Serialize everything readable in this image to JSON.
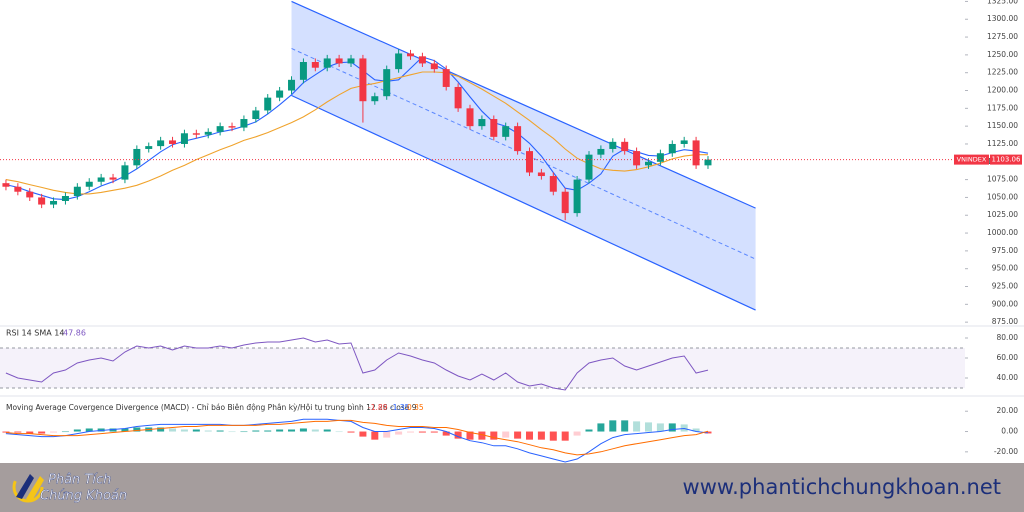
{
  "chart_data": [
    {
      "type": "candlestick",
      "symbol": "VNINDEX",
      "xlim": [
        -0.5,
        80.6
      ],
      "ylim": [
        871,
        1327
      ],
      "yticks": [
        {
          "value": 875,
          "label": "875.00"
        },
        {
          "value": 900,
          "label": "900.00"
        },
        {
          "value": 925,
          "label": "925.00"
        },
        {
          "value": 950,
          "label": "950.00"
        },
        {
          "value": 975,
          "label": "975.00"
        },
        {
          "value": 1000,
          "label": "1000.00"
        },
        {
          "value": 1025,
          "label": "1025.00"
        },
        {
          "value": 1050,
          "label": "1050.00"
        },
        {
          "value": 1075,
          "label": "1075.00"
        },
        {
          "value": 1100,
          "label": "1100.00"
        },
        {
          "value": 1125,
          "label": "1125.00"
        },
        {
          "value": 1150,
          "label": "1150.00"
        },
        {
          "value": 1175,
          "label": "1175.00"
        },
        {
          "value": 1200,
          "label": "1200.00"
        },
        {
          "value": 1225,
          "label": "1225.00"
        },
        {
          "value": 1250,
          "label": "1250.00"
        },
        {
          "value": 1275,
          "label": "1275.00"
        },
        {
          "value": 1300,
          "label": "1300.00"
        },
        {
          "value": 1325,
          "label": "1325.00"
        }
      ],
      "up_color": "#089981",
      "down_color": "#f23645",
      "open": [
        1070,
        1065,
        1058,
        1050,
        1040,
        1045,
        1052,
        1065,
        1072,
        1078,
        1075,
        1095,
        1118,
        1122,
        1130,
        1125,
        1140,
        1138,
        1142,
        1150,
        1148,
        1160,
        1172,
        1190,
        1200,
        1215,
        1240,
        1232,
        1245,
        1238,
        1245,
        1185,
        1192,
        1230,
        1252,
        1248,
        1238,
        1230,
        1205,
        1175,
        1150,
        1160,
        1135,
        1150,
        1115,
        1085,
        1080,
        1058,
        1028,
        1075,
        1110,
        1118,
        1128,
        1115,
        1095,
        1100,
        1112,
        1125,
        1130,
        1095
      ],
      "high": [
        1075,
        1070,
        1063,
        1055,
        1050,
        1057,
        1070,
        1077,
        1083,
        1083,
        1100,
        1123,
        1127,
        1135,
        1135,
        1145,
        1145,
        1147,
        1155,
        1155,
        1165,
        1177,
        1195,
        1205,
        1220,
        1245,
        1245,
        1250,
        1250,
        1250,
        1250,
        1197,
        1235,
        1258,
        1257,
        1253,
        1243,
        1235,
        1210,
        1180,
        1165,
        1165,
        1155,
        1155,
        1120,
        1090,
        1085,
        1063,
        1080,
        1115,
        1123,
        1133,
        1133,
        1120,
        1105,
        1117,
        1130,
        1135,
        1135,
        1108
      ],
      "low": [
        1060,
        1053,
        1045,
        1035,
        1035,
        1040,
        1047,
        1060,
        1067,
        1070,
        1070,
        1090,
        1113,
        1117,
        1120,
        1120,
        1133,
        1133,
        1137,
        1143,
        1143,
        1155,
        1167,
        1185,
        1195,
        1210,
        1227,
        1227,
        1233,
        1233,
        1155,
        1180,
        1187,
        1225,
        1243,
        1233,
        1225,
        1200,
        1170,
        1145,
        1145,
        1130,
        1130,
        1110,
        1080,
        1075,
        1053,
        1018,
        1023,
        1070,
        1105,
        1113,
        1110,
        1090,
        1090,
        1095,
        1107,
        1120,
        1090,
        1090
      ],
      "close": [
        1065,
        1058,
        1050,
        1040,
        1045,
        1052,
        1065,
        1072,
        1078,
        1075,
        1095,
        1118,
        1122,
        1130,
        1125,
        1140,
        1138,
        1142,
        1150,
        1148,
        1160,
        1172,
        1190,
        1200,
        1215,
        1240,
        1232,
        1245,
        1238,
        1245,
        1185,
        1192,
        1230,
        1252,
        1248,
        1238,
        1230,
        1205,
        1175,
        1150,
        1160,
        1135,
        1150,
        1115,
        1085,
        1080,
        1058,
        1028,
        1075,
        1110,
        1118,
        1128,
        1115,
        1095,
        1100,
        1112,
        1125,
        1130,
        1095,
        1103.06
      ],
      "series": [
        {
          "color": "#2962ff",
          "values": [
            1068,
            1064,
            1058,
            1053,
            1048,
            1047,
            1051,
            1058,
            1066,
            1072,
            1080,
            1090,
            1102,
            1114,
            1124,
            1129,
            1133,
            1137,
            1142,
            1145,
            1150,
            1156,
            1167,
            1180,
            1194,
            1211,
            1222,
            1233,
            1239,
            1240,
            1228,
            1215,
            1213,
            1215,
            1231,
            1247,
            1242,
            1230,
            1212,
            1191,
            1171,
            1155,
            1150,
            1140,
            1126,
            1108,
            1085,
            1063,
            1060,
            1070,
            1083,
            1108,
            1118,
            1114,
            1109,
            1108,
            1113,
            1117,
            1115,
            1112
          ]
        },
        {
          "color": "#f0a32c",
          "values": [
            1075,
            1072,
            1068,
            1064,
            1060,
            1057,
            1055,
            1055,
            1057,
            1060,
            1063,
            1067,
            1073,
            1080,
            1088,
            1095,
            1103,
            1110,
            1117,
            1123,
            1130,
            1135,
            1141,
            1148,
            1155,
            1163,
            1173,
            1184,
            1194,
            1203,
            1207,
            1210,
            1214,
            1218,
            1222,
            1226,
            1226,
            1225,
            1220,
            1211,
            1202,
            1192,
            1182,
            1170,
            1158,
            1145,
            1133,
            1118,
            1105,
            1097,
            1090,
            1088,
            1087,
            1089,
            1093,
            1098,
            1104,
            1108,
            1110,
            1110
          ]
        }
      ],
      "channel": {
        "x": [
          24,
          63
        ],
        "upper": [
          1325,
          1035
        ],
        "lower": [
          1193,
          892
        ],
        "color": "#2962ff"
      }
    },
    {
      "type": "line",
      "title": "RSI 14 SMA 14",
      "color": "#7e57c2",
      "ylim": [
        23,
        91
      ],
      "yticks": [
        {
          "value": 80,
          "label": "80.00"
        },
        {
          "value": 60,
          "label": "60.00"
        },
        {
          "value": 40,
          "label": "40.00"
        }
      ],
      "band": [
        30,
        70
      ],
      "values": [
        45,
        40,
        38,
        36,
        45,
        48,
        55,
        58,
        60,
        57,
        66,
        72,
        70,
        72,
        68,
        72,
        70,
        70,
        72,
        70,
        73,
        75,
        76,
        76,
        78,
        80,
        76,
        78,
        74,
        75,
        45,
        48,
        58,
        65,
        62,
        58,
        55,
        48,
        42,
        38,
        44,
        38,
        45,
        36,
        32,
        34,
        30,
        28,
        45,
        55,
        58,
        60,
        52,
        48,
        52,
        56,
        60,
        62,
        45,
        47.86
      ]
    },
    {
      "type": "macd",
      "title": "Moving Average Covergence Divergence (MACD) - Chỉ báo Biên động Phân kỳ/Hội tụ trung bình 12 26 close 9",
      "ylim": [
        -30,
        34
      ],
      "yticks": [
        {
          "value": 20,
          "label": "20.00"
        },
        {
          "value": 0,
          "label": "0.00"
        },
        {
          "value": -20,
          "label": "-20.00"
        }
      ],
      "histogram_colors": [
        "#26a69a",
        "#b2dfdb",
        "#ff5252",
        "#ffcdd2"
      ],
      "histogram": [
        -1,
        -1,
        -2,
        -2,
        -1,
        0,
        2,
        3,
        3,
        3,
        3,
        4,
        4,
        4,
        3,
        2,
        2,
        1,
        1,
        0,
        0,
        1,
        1,
        2,
        2,
        3,
        2,
        2,
        0,
        -1,
        -5,
        -8,
        -6,
        -3,
        -1,
        -1,
        -1,
        -4,
        -7,
        -8,
        -8,
        -8,
        -6,
        -7,
        -8,
        -8,
        -9,
        -9,
        -4,
        2,
        8,
        11,
        11,
        10,
        9,
        8,
        8,
        7,
        3,
        -1.89
      ],
      "macd": {
        "color": "#2962ff",
        "values": [
          -2,
          -3,
          -4,
          -5,
          -5,
          -4,
          -2,
          0,
          1,
          2,
          3,
          5,
          6,
          7,
          7,
          7,
          7,
          7,
          7,
          6,
          6,
          7,
          8,
          9,
          10,
          12,
          12,
          12,
          11,
          10,
          4,
          0,
          0,
          2,
          4,
          4,
          3,
          0,
          -5,
          -9,
          -11,
          -14,
          -14,
          -17,
          -21,
          -24,
          -27,
          -30,
          -27,
          -20,
          -12,
          -6,
          -3,
          -2,
          -1,
          0,
          2,
          3,
          0,
          -1.35
        ]
      },
      "signal": {
        "color": "#ff6d00",
        "values": [
          -1,
          -2,
          -2,
          -3,
          -4,
          -4,
          -4,
          -3,
          -2,
          -1,
          0,
          1,
          2,
          3,
          4,
          5,
          5,
          6,
          6,
          6,
          6,
          6,
          7,
          7,
          8,
          9,
          10,
          10,
          11,
          11,
          9,
          8,
          6,
          5,
          5,
          5,
          4,
          4,
          2,
          -1,
          -3,
          -6,
          -8,
          -10,
          -13,
          -16,
          -18,
          -21,
          -23,
          -22,
          -20,
          -17,
          -14,
          -12,
          -10,
          -8,
          -6,
          -4,
          -3,
          0.35
        ]
      }
    }
  ],
  "banner": {
    "brand_line1": "Phân Tích",
    "brand_line2": "Chứng Khoán",
    "url": "www.phantichchungkhoan.net"
  }
}
